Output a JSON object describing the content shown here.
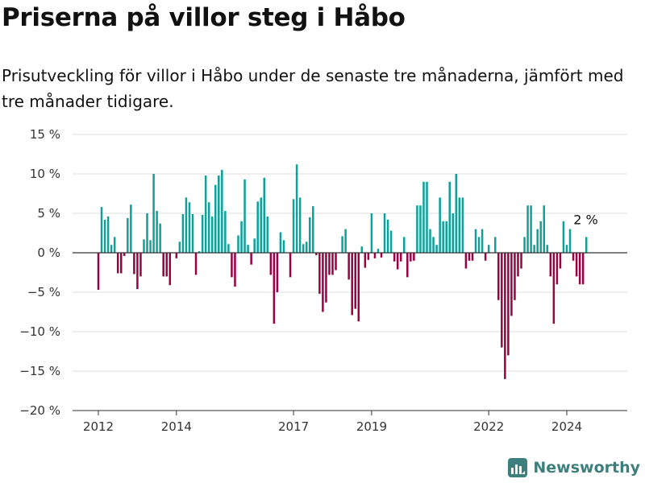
{
  "header": {
    "title": "Priserna på villor steg i Håbo",
    "subtitle": "Prisutveckling för villor i Håbo under de senaste tre månaderna, jämfört med tre månader tidigare."
  },
  "brand": {
    "name": "Newsworthy",
    "icon": "newsworthy-logo-icon"
  },
  "colors": {
    "positive": "#0aa29a",
    "negative": "#9b0042",
    "grid": "#dddddd",
    "zero_line": "#333333"
  },
  "chart_data": {
    "type": "bar",
    "title": "",
    "xlabel": "",
    "ylabel": "",
    "ylim": [
      -20,
      15
    ],
    "yticks": [
      15,
      10,
      5,
      0,
      -5,
      -10,
      -15,
      -20
    ],
    "ytick_labels": [
      "15 %",
      "10 %",
      "5 %",
      "0 %",
      "−5 %",
      "−10 %",
      "−15 %",
      "−20 %"
    ],
    "x_start": "2012-01",
    "x_end": "2025-04",
    "x_ticks": [
      {
        "date": "2012-01",
        "label": "2012"
      },
      {
        "date": "2014-01",
        "label": "2014"
      },
      {
        "date": "2017-01",
        "label": "2017"
      },
      {
        "date": "2019-01",
        "label": "2019"
      },
      {
        "date": "2022-01",
        "label": "2022"
      },
      {
        "date": "2024-01",
        "label": "2024"
      }
    ],
    "grid": true,
    "end_label": "2 %",
    "series": [
      {
        "values": [
          -4.7,
          5.8,
          4.2,
          4.6,
          1.0,
          2.0,
          -2.6,
          -2.6,
          -0.4,
          4.4,
          6.1,
          -2.7,
          -4.6,
          -3.0,
          1.7,
          5.0,
          1.6,
          10.0,
          5.3,
          3.7,
          -3.0,
          -3.0,
          -4.1,
          0.0,
          -0.7,
          1.4,
          4.9,
          7.0,
          6.4,
          4.9,
          -2.8,
          0.2,
          4.8,
          9.8,
          6.4,
          4.6,
          8.6,
          9.8,
          10.5,
          5.3,
          1.1,
          -3.1,
          -4.3,
          2.2,
          4.0,
          9.3,
          1.0,
          -1.5,
          1.8,
          6.5,
          7.0,
          9.5,
          4.6,
          -2.8,
          -9.0,
          -5.0,
          2.6,
          1.6,
          0.0,
          -3.1,
          6.8,
          11.2,
          7.0,
          1.1,
          1.4,
          4.5,
          5.9,
          -0.3,
          -5.2,
          -7.5,
          -6.3,
          -2.8,
          -2.8,
          -2.2,
          0.0,
          2.1,
          3.0,
          -3.4,
          -7.9,
          -7.1,
          -8.7,
          0.8,
          -1.9,
          -0.9,
          5.0,
          -0.7,
          0.5,
          -0.6,
          5.0,
          4.2,
          2.8,
          -1.1,
          -2.1,
          -1.1,
          2.0,
          -3.1,
          -1.1,
          -1.0,
          6.0,
          6.0,
          9.0,
          9.0,
          3.0,
          2.0,
          1.0,
          7.0,
          4.0,
          4.0,
          9.0,
          5.0,
          10.0,
          7.0,
          7.0,
          -2.0,
          -1.0,
          -1.0,
          3.0,
          2.0,
          3.0,
          -1.0,
          1.0,
          0.0,
          2.0,
          -6.0,
          -12.0,
          -16.0,
          -13.0,
          -8.0,
          -6.0,
          -3.0,
          -2.0,
          2.0,
          6.0,
          6.0,
          1.0,
          3.0,
          4.0,
          6.0,
          1.0,
          -3.0,
          -9.0,
          -4.0,
          -2.0,
          4.0,
          1.0,
          3.0,
          -1.0,
          -3.0,
          -4.0,
          -4.0,
          2.0
        ]
      }
    ]
  }
}
